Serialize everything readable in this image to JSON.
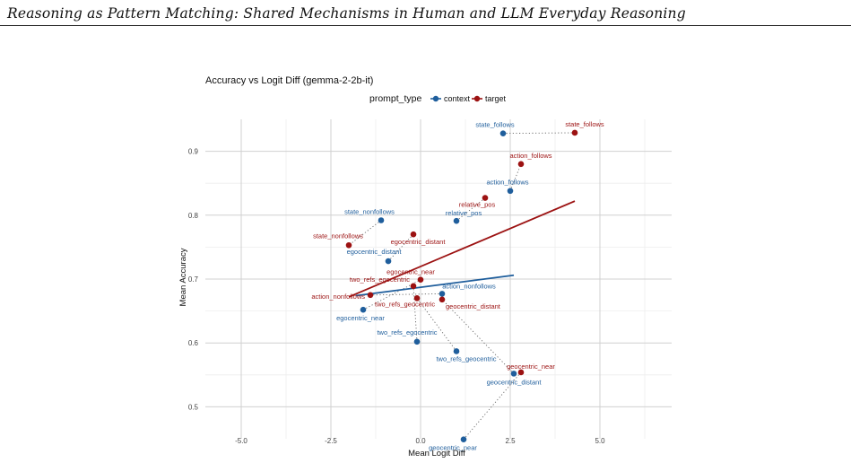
{
  "page": {
    "running_header": "Reasoning as Pattern Matching: Shared Mechanisms in Human and LLM Everyday Reasoning"
  },
  "chart_data": {
    "type": "scatter",
    "title": "Accuracy vs Logit Diff (gemma-2-2b-it)",
    "xlabel": "Mean Logit Diff",
    "ylabel": "Mean Accuracy",
    "xlim": [
      -6.0,
      7.0
    ],
    "ylim": [
      0.45,
      0.95
    ],
    "x_ticks": [
      -5.0,
      -2.5,
      0.0,
      2.5,
      5.0
    ],
    "x_tick_labels": [
      "-5.0",
      "-2.5",
      "0.0",
      "2.5",
      "5.0"
    ],
    "y_ticks": [
      0.5,
      0.6,
      0.7,
      0.8,
      0.9
    ],
    "y_tick_labels": [
      "0.5",
      "0.6",
      "0.7",
      "0.8",
      "0.9"
    ],
    "grid": true,
    "legend": {
      "title": "prompt_type",
      "position": "top",
      "entries": [
        {
          "label": "context",
          "color": "#1f5e9c"
        },
        {
          "label": "target",
          "color": "#9c1212"
        }
      ]
    },
    "series": [
      {
        "name": "context",
        "color": "#1f5e9c",
        "points": [
          {
            "label": "state_follows",
            "x": 2.3,
            "y": 0.928
          },
          {
            "label": "action_follows",
            "x": 2.5,
            "y": 0.838
          },
          {
            "label": "state_nonfollows",
            "x": -1.1,
            "y": 0.792
          },
          {
            "label": "relative_pos",
            "x": 1.0,
            "y": 0.791
          },
          {
            "label": "egocentric_distant",
            "x": -0.9,
            "y": 0.728
          },
          {
            "label": "action_nonfollows",
            "x": 0.6,
            "y": 0.677
          },
          {
            "label": "egocentric_near",
            "x": -1.6,
            "y": 0.652
          },
          {
            "label": "two_refs_egocentric",
            "x": -0.1,
            "y": 0.602
          },
          {
            "label": "two_refs_geocentric",
            "x": 1.0,
            "y": 0.587
          },
          {
            "label": "geocentric_distant",
            "x": 2.6,
            "y": 0.552
          },
          {
            "label": "geocentric_near",
            "x": 1.2,
            "y": 0.449
          }
        ],
        "trend": {
          "x": [
            -1.8,
            2.6
          ],
          "y": [
            0.674,
            0.706
          ]
        }
      },
      {
        "name": "target",
        "color": "#9c1212",
        "points": [
          {
            "label": "state_follows",
            "x": 4.3,
            "y": 0.929
          },
          {
            "label": "action_follows",
            "x": 2.8,
            "y": 0.88
          },
          {
            "label": "relative_pos",
            "x": 1.8,
            "y": 0.827
          },
          {
            "label": "state_nonfollows",
            "x": -2.0,
            "y": 0.753
          },
          {
            "label": "egocentric_distant",
            "x": -0.2,
            "y": 0.77
          },
          {
            "label": "egocentric_near",
            "x": 0.0,
            "y": 0.699
          },
          {
            "label": "two_refs_egocentric",
            "x": -0.2,
            "y": 0.689
          },
          {
            "label": "action_nonfollows",
            "x": -1.4,
            "y": 0.675
          },
          {
            "label": "two_refs_geocentric",
            "x": -0.1,
            "y": 0.67
          },
          {
            "label": "geocentric_distant",
            "x": 0.6,
            "y": 0.668
          },
          {
            "label": "geocentric_near",
            "x": 2.8,
            "y": 0.554
          }
        ],
        "trend": {
          "x": [
            -2.0,
            4.3
          ],
          "y": [
            0.672,
            0.822
          ]
        }
      }
    ],
    "connectors_style": "dotted",
    "connector_color": "#666666"
  }
}
